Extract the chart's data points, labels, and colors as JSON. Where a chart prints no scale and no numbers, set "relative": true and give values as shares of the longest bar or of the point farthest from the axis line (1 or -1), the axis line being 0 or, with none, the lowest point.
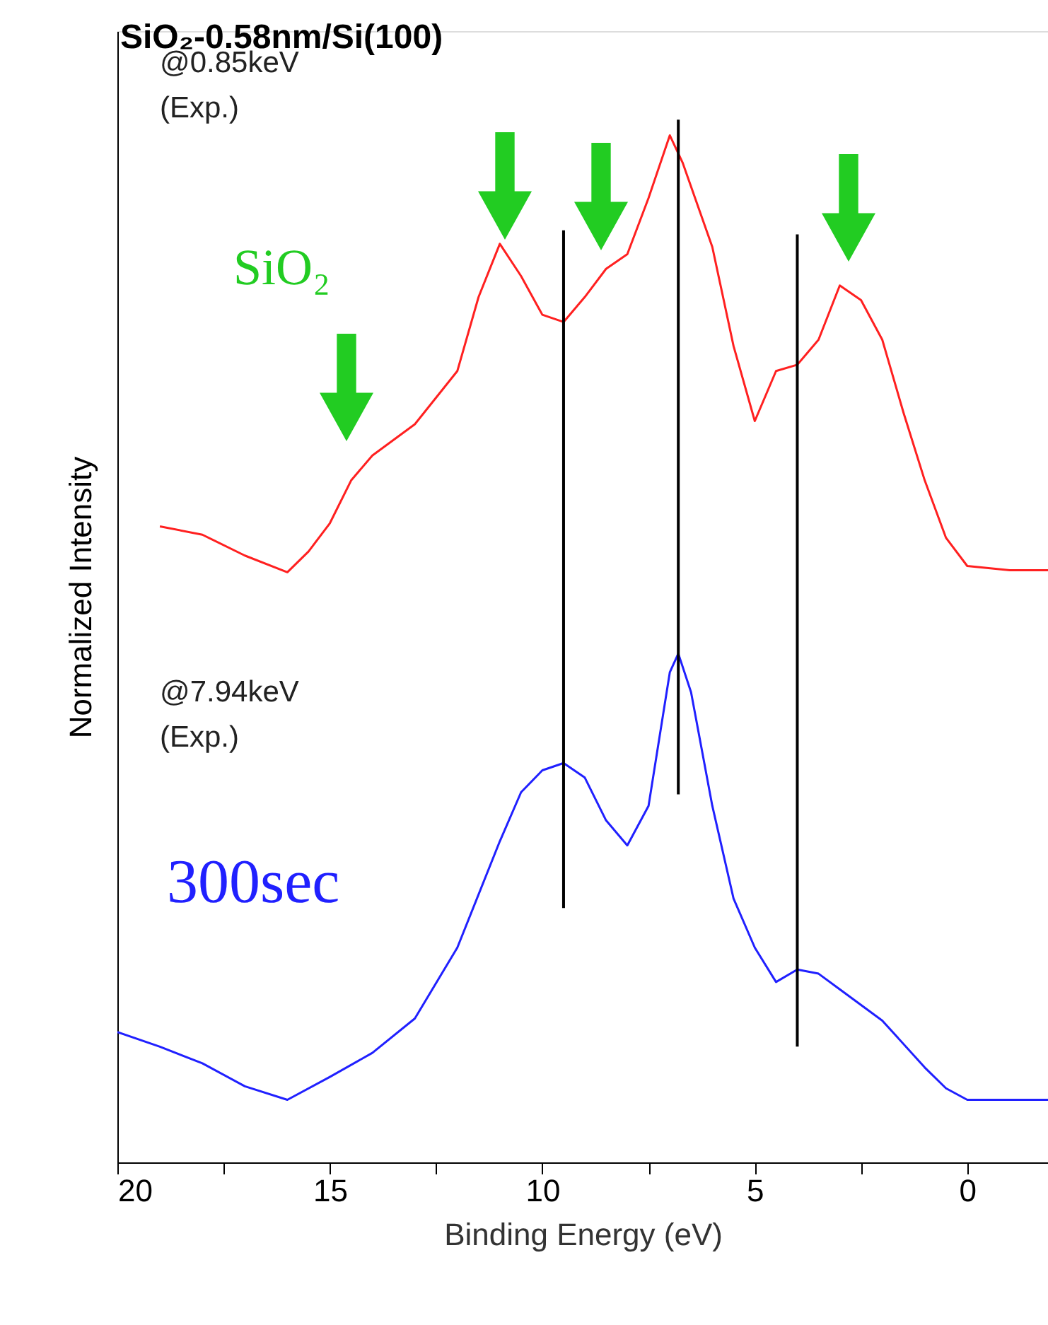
{
  "chart_data": {
    "type": "line",
    "title": "SiO₂-0.58nm/Si(100)",
    "xlabel": "Binding Energy (eV)",
    "ylabel": "Normalized Intensity",
    "relative": true,
    "xlim": [
      20,
      -1.9
    ],
    "xticks": [
      20,
      {
        "value": 17.5,
        "label": null
      },
      15,
      {
        "value": 12.5,
        "label": null
      },
      10,
      {
        "value": 7.5,
        "label": null
      },
      5,
      {
        "value": 2.5,
        "label": null
      },
      0
    ],
    "grid": false,
    "line_style": "solid",
    "annotations": [
      "@0.85keV\n(Exp.)",
      "@7.94keV\n(Exp.)",
      "SiO₂",
      "300sec"
    ],
    "series": [
      {
        "color": "#ff2020",
        "x": [
          19,
          18,
          17,
          16,
          15.5,
          15,
          14.5,
          14,
          13,
          12,
          11.5,
          11,
          10.5,
          10,
          9.5,
          9,
          8.5,
          8,
          7.5,
          7,
          6.7,
          6,
          5.5,
          5,
          4.5,
          4,
          3.5,
          3,
          2.5,
          2,
          1.5,
          1,
          0.5,
          0,
          -1,
          -1.9
        ],
        "values": [
          0.61,
          0.602,
          0.582,
          0.566,
          0.586,
          0.613,
          0.654,
          0.678,
          0.708,
          0.759,
          0.83,
          0.881,
          0.85,
          0.813,
          0.806,
          0.83,
          0.857,
          0.871,
          0.925,
          0.985,
          0.959,
          0.878,
          0.783,
          0.711,
          0.759,
          0.765,
          0.789,
          0.841,
          0.827,
          0.789,
          0.719,
          0.654,
          0.599,
          0.572,
          0.568,
          0.568
        ]
      },
      {
        "color": "#2020ff",
        "x": [
          20,
          19,
          18,
          17,
          16,
          15,
          14,
          13,
          12,
          11,
          10.5,
          10,
          9.5,
          9,
          8.5,
          8,
          7.5,
          7,
          6.8,
          6.5,
          6,
          5.5,
          5,
          4.5,
          4,
          3.5,
          3,
          2,
          1,
          0.5,
          0,
          -1.9
        ],
        "values": [
          0.125,
          0.111,
          0.095,
          0.073,
          0.06,
          0.082,
          0.105,
          0.138,
          0.206,
          0.308,
          0.355,
          0.376,
          0.383,
          0.369,
          0.328,
          0.304,
          0.342,
          0.47,
          0.488,
          0.451,
          0.342,
          0.253,
          0.206,
          0.173,
          0.185,
          0.181,
          0.166,
          0.136,
          0.091,
          0.071,
          0.06,
          0.06
        ]
      },
      {
        "color": "#000000",
        "x": [
          9.5,
          9.5
        ],
        "values": [
          0.894,
          0.244
        ]
      },
      {
        "color": "#000000",
        "x": [
          6.8,
          6.8
        ],
        "values": [
          1.0,
          0.353
        ]
      },
      {
        "color": "#000000",
        "x": [
          4,
          4
        ],
        "values": [
          0.89,
          0.111
        ]
      }
    ]
  }
}
